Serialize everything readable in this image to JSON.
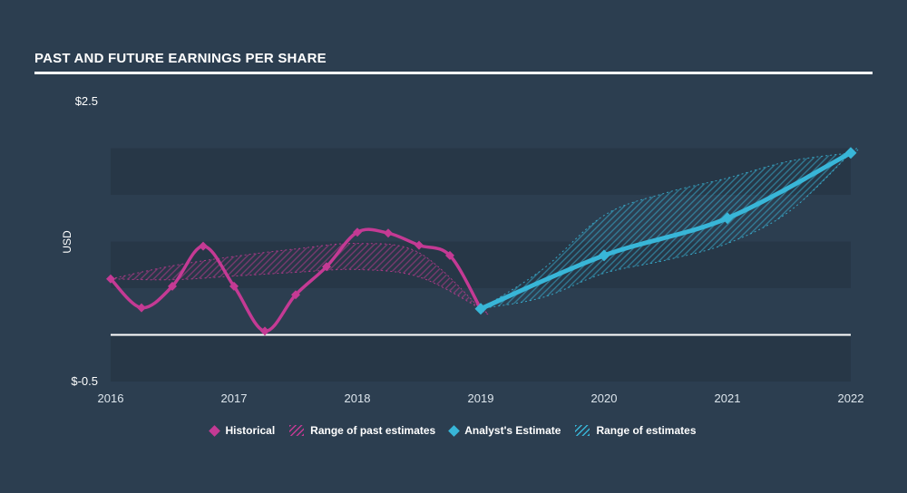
{
  "title": "PAST AND FUTURE EARNINGS PER SHARE",
  "colors": {
    "background": "#2c3e50",
    "stripe": "rgba(0,0,0,0.10)",
    "historical": "#c43a94",
    "estimate": "#38b6d8",
    "zero_line": "#ffffff",
    "tick_text": "#dde6ed",
    "title_text": "#ffffff"
  },
  "y_axis": {
    "title": "USD",
    "max_label": "$2.5",
    "min_label": "$-0.5"
  },
  "legend": [
    {
      "label": "Historical",
      "swatch": "diamond",
      "color_key": "historical"
    },
    {
      "label": "Range of past estimates",
      "swatch": "hatch",
      "color_key": "historical"
    },
    {
      "label": "Analyst's Estimate",
      "swatch": "diamond",
      "color_key": "estimate"
    },
    {
      "label": "Range of estimates",
      "swatch": "hatch",
      "color_key": "estimate"
    }
  ],
  "chart_data": {
    "type": "line",
    "title": "Past and future earnings per share",
    "xlabel": "",
    "ylabel": "USD",
    "ylim": [
      -0.5,
      2.5
    ],
    "xlim": [
      2016,
      2022
    ],
    "x_ticks": [
      2016,
      2017,
      2018,
      2019,
      2020,
      2021,
      2022
    ],
    "stripe_step": 0.5,
    "zero_line": 0,
    "grid": "horizontal-stripes",
    "legend_position": "bottom-center",
    "series": [
      {
        "name": "Range of past estimates",
        "kind": "band",
        "color_key": "historical",
        "x": [
          2016,
          2016.5,
          2017,
          2017.5,
          2018,
          2018.5,
          2019
        ],
        "upper": [
          0.6,
          0.74,
          0.84,
          0.92,
          0.98,
          0.88,
          0.28
        ],
        "lower": [
          0.6,
          0.59,
          0.63,
          0.67,
          0.7,
          0.62,
          0.28
        ]
      },
      {
        "name": "Range of estimates",
        "kind": "band",
        "color_key": "estimate",
        "x": [
          2019,
          2019.5,
          2020,
          2020.5,
          2021,
          2021.5,
          2022
        ],
        "upper": [
          0.28,
          0.7,
          1.28,
          1.52,
          1.68,
          1.86,
          1.95
        ],
        "lower": [
          0.28,
          0.4,
          0.66,
          0.8,
          0.98,
          1.32,
          1.95
        ]
      },
      {
        "name": "Historical",
        "kind": "line",
        "color_key": "historical",
        "x": [
          2016,
          2016.25,
          2016.5,
          2016.75,
          2017,
          2017.25,
          2017.5,
          2017.75,
          2018,
          2018.25,
          2018.5,
          2018.75,
          2019
        ],
        "y": [
          0.6,
          0.29,
          0.52,
          0.95,
          0.52,
          0.04,
          0.43,
          0.73,
          1.1,
          1.09,
          0.96,
          0.85,
          0.28
        ]
      },
      {
        "name": "Analyst's Estimate",
        "kind": "line",
        "color_key": "estimate",
        "x": [
          2019,
          2020,
          2021,
          2022
        ],
        "y": [
          0.28,
          0.85,
          1.25,
          1.95
        ]
      }
    ]
  }
}
